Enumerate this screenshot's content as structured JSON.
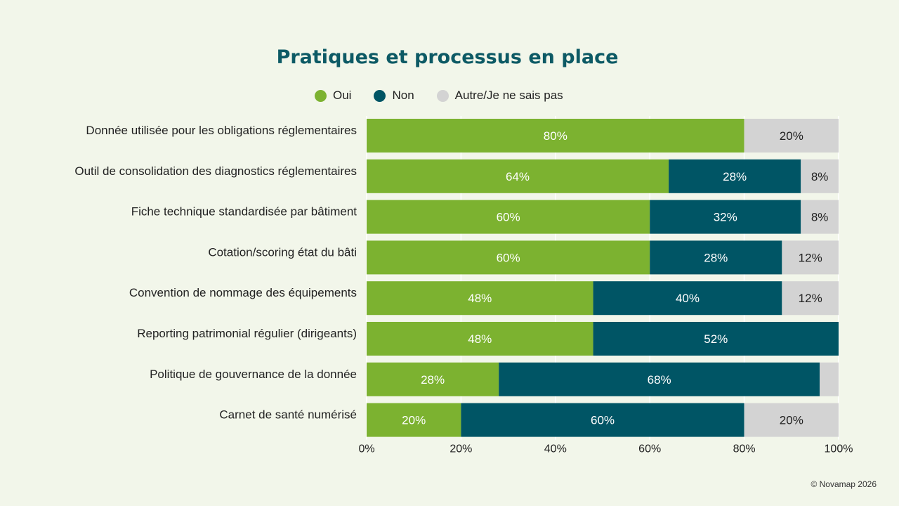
{
  "legend": {
    "items": [
      {
        "label": "Oui",
        "color": "#7cb230"
      },
      {
        "label": "Non",
        "color": "#005565"
      },
      {
        "label": "Autre/Je ne sais pas",
        "color": "#d3d3d3"
      }
    ]
  },
  "footer": {
    "text": "© Novamap 2026"
  },
  "chart_data": {
    "type": "bar",
    "orientation": "horizontal",
    "stacked": true,
    "title": "Pratiques et processus en place",
    "categories": [
      "Donnée utilisée pour les obligations réglementaires",
      "Outil de consolidation des diagnostics réglementaires",
      "Fiche technique standardisée par bâtiment",
      "Cotation/scoring état du bâti",
      "Convention de nommage des équipements",
      "Reporting patrimonial régulier (dirigeants)",
      "Politique de gouvernance de la donnée",
      "Carnet de santé numérisé"
    ],
    "series": [
      {
        "name": "Oui",
        "color": "#7cb230",
        "label_color": "#ffffff",
        "values": [
          80,
          64,
          60,
          60,
          48,
          48,
          28,
          20
        ],
        "labels": [
          "80%",
          "64%",
          "60%",
          "60%",
          "48%",
          "48%",
          "28%",
          "20%"
        ]
      },
      {
        "name": "Non",
        "color": "#005565",
        "label_color": "#ffffff",
        "values": [
          0,
          28,
          32,
          28,
          40,
          52,
          68,
          60
        ],
        "labels": [
          "",
          "28%",
          "32%",
          "28%",
          "40%",
          "52%",
          "68%",
          "60%"
        ]
      },
      {
        "name": "Autre/Je ne sais pas",
        "color": "#d3d3d3",
        "label_color": "#222222",
        "values": [
          20,
          8,
          8,
          12,
          12,
          0,
          4,
          20
        ],
        "labels": [
          "20%",
          "8%",
          "8%",
          "12%",
          "12%",
          "",
          "",
          "20%"
        ]
      }
    ],
    "xlim": [
      0,
      100
    ],
    "xticks": [
      "0%",
      "20%",
      "40%",
      "60%",
      "80%",
      "100%"
    ],
    "grid": true,
    "legend_position": "top"
  }
}
